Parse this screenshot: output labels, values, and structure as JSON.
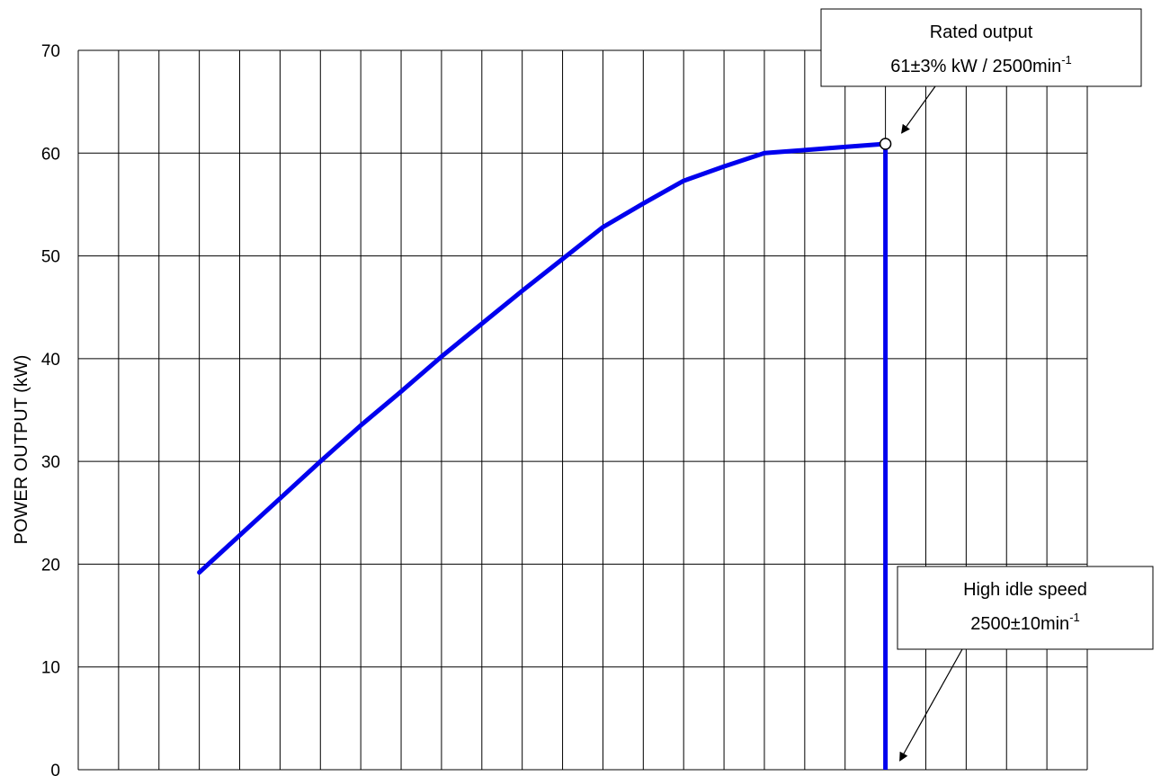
{
  "chart_data": {
    "type": "line",
    "title": "",
    "xlabel": "",
    "ylabel": "POWER OUTPUT (kW)",
    "ylim": [
      0,
      70
    ],
    "yticks": [
      0,
      10,
      20,
      30,
      40,
      50,
      60,
      70
    ],
    "grid": true,
    "series": [
      {
        "color": "#0000ee",
        "points": [
          [
            3,
            19.2
          ],
          [
            4,
            22.8
          ],
          [
            5,
            26.4
          ],
          [
            6,
            30.0
          ],
          [
            7,
            33.5
          ],
          [
            8,
            36.8
          ],
          [
            9,
            40.2
          ],
          [
            10,
            43.4
          ],
          [
            11,
            46.6
          ],
          [
            12,
            49.7
          ],
          [
            13,
            52.8
          ],
          [
            14,
            55.1
          ],
          [
            15,
            57.3
          ],
          [
            16,
            58.7
          ],
          [
            17,
            60.0
          ],
          [
            18,
            60.3
          ],
          [
            19,
            60.6
          ],
          [
            20,
            60.9
          ]
        ],
        "drop": [
          [
            20,
            60.9
          ],
          [
            20,
            0
          ]
        ]
      }
    ],
    "annotations": [
      {
        "id": "rated-output",
        "line1": "Rated output",
        "line2_main": "61±3% kW / 2500min",
        "line2_sup": "-1",
        "target": [
          20,
          60.9
        ]
      },
      {
        "id": "high-idle",
        "line1": "High idle speed",
        "line2_main": "2500±10min",
        "line2_sup": "-1",
        "target": [
          20,
          0
        ]
      }
    ]
  }
}
